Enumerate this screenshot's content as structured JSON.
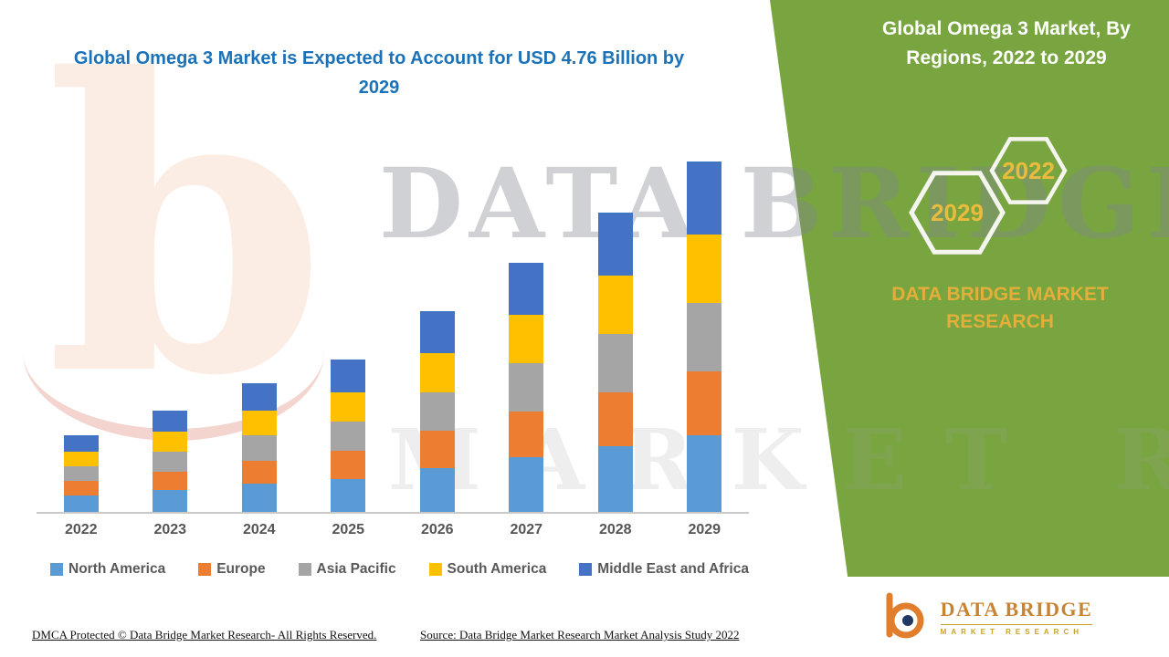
{
  "main": {
    "title": "Global Omega 3 Market is Expected to Account for USD 4.76 Billion by 2029",
    "footer_left": "DMCA Protected © Data Bridge Market Research- All Rights Reserved.",
    "footer_source": "Source: Data Bridge Market Research Market Analysis Study 2022"
  },
  "sidebar": {
    "title": "Global Omega 3 Market, By Regions, 2022 to 2029",
    "hexagon_2022": "2022",
    "hexagon_2029": "2029",
    "brand_text": "DATA BRIDGE MARKET RESEARCH",
    "logo": {
      "name": "DATA BRIDGE",
      "tagline": "MARKET RESEARCH"
    },
    "colors": {
      "panel_green": "#78A53F",
      "accent_gold": "#E3AE3A"
    }
  },
  "watermark": {
    "letter": "b",
    "line1": "DATA BRIDGE",
    "line2": "MARKET RESEARCH"
  },
  "chart_data": {
    "type": "bar",
    "stacked": true,
    "title": "Global Omega 3 Market is Expected to Account for USD 4.76 Billion by 2029",
    "xlabel": "",
    "ylabel": "",
    "ylim": [
      0,
      5
    ],
    "grid": false,
    "legend_position": "bottom",
    "categories": [
      "2022",
      "2023",
      "2024",
      "2025",
      "2026",
      "2027",
      "2028",
      "2029"
    ],
    "totals": [
      1.04,
      1.38,
      1.75,
      2.07,
      2.73,
      3.39,
      4.07,
      4.76
    ],
    "series": [
      {
        "name": "North America",
        "color": "#5B9BD5",
        "values": [
          0.23,
          0.3,
          0.38,
          0.45,
          0.6,
          0.74,
          0.89,
          1.04
        ]
      },
      {
        "name": "Europe",
        "color": "#ED7D31",
        "values": [
          0.19,
          0.25,
          0.32,
          0.38,
          0.5,
          0.62,
          0.74,
          0.87
        ]
      },
      {
        "name": "Asia Pacific",
        "color": "#A5A5A5",
        "values": [
          0.2,
          0.27,
          0.34,
          0.4,
          0.53,
          0.66,
          0.79,
          0.93
        ]
      },
      {
        "name": "South America",
        "color": "#FFC000",
        "values": [
          0.2,
          0.27,
          0.34,
          0.4,
          0.53,
          0.66,
          0.79,
          0.93
        ]
      },
      {
        "name": "Middle East and Africa",
        "color": "#4472C4",
        "values": [
          0.22,
          0.29,
          0.37,
          0.44,
          0.57,
          0.71,
          0.86,
          0.99
        ]
      }
    ]
  }
}
